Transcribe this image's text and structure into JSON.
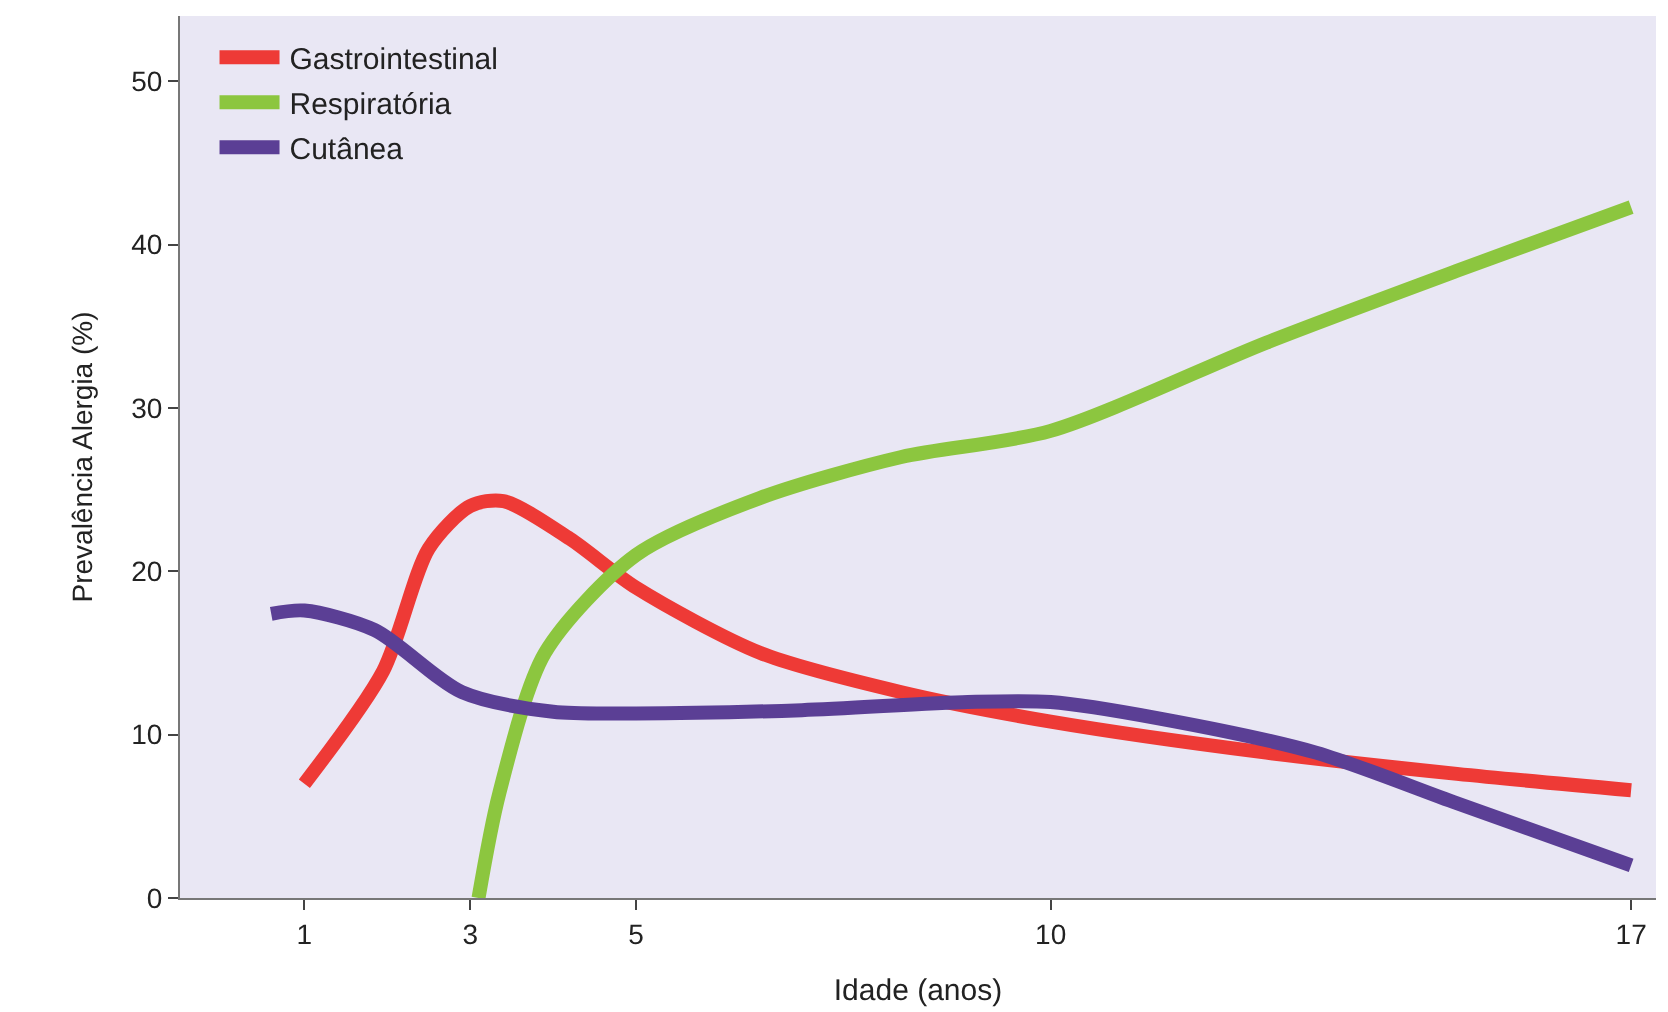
{
  "chart_data": {
    "type": "line",
    "xlabel": "Idade (anos)",
    "ylabel": "Prevalência Alergia (%)",
    "xlim": [
      -0.5,
      17.3
    ],
    "xticks": [
      1,
      3,
      5,
      10,
      17
    ],
    "ylim": [
      0,
      54
    ],
    "yticks": [
      0,
      10,
      20,
      30,
      40,
      50
    ],
    "grid": false,
    "legend": "top left",
    "marker": "none",
    "line_style": "solid",
    "series": [
      {
        "name": "Gastrointestinal",
        "color": "#ee3a36",
        "x": [
          1,
          1.95,
          2.5,
          3,
          3.4,
          4.2,
          5,
          6.5,
          8.2,
          10,
          12.6,
          14.9,
          17
        ],
        "values": [
          7,
          13.9,
          21.4,
          24,
          24.3,
          22,
          19,
          15,
          12.6,
          10.8,
          8.9,
          7.6,
          6.6
        ]
      },
      {
        "name": "Respiratória",
        "color": "#8cc63f",
        "x": [
          3.1,
          3.35,
          3.9,
          5,
          6.5,
          8.2,
          10,
          12.6,
          14.9,
          17
        ],
        "values": [
          0,
          6.4,
          15,
          21,
          24.5,
          27,
          28.6,
          34,
          38.4,
          42.3
        ]
      },
      {
        "name": "Cutânea",
        "color": "#5b3f95",
        "x": [
          0.6,
          1,
          1.85,
          2.9,
          4,
          5,
          7,
          9,
          10,
          11.3,
          13.2,
          14.9,
          17
        ],
        "values": [
          17.4,
          17.6,
          16.4,
          12.6,
          11.4,
          11.3,
          11.5,
          12,
          12,
          11,
          8.9,
          5.8,
          2
        ]
      }
    ]
  }
}
